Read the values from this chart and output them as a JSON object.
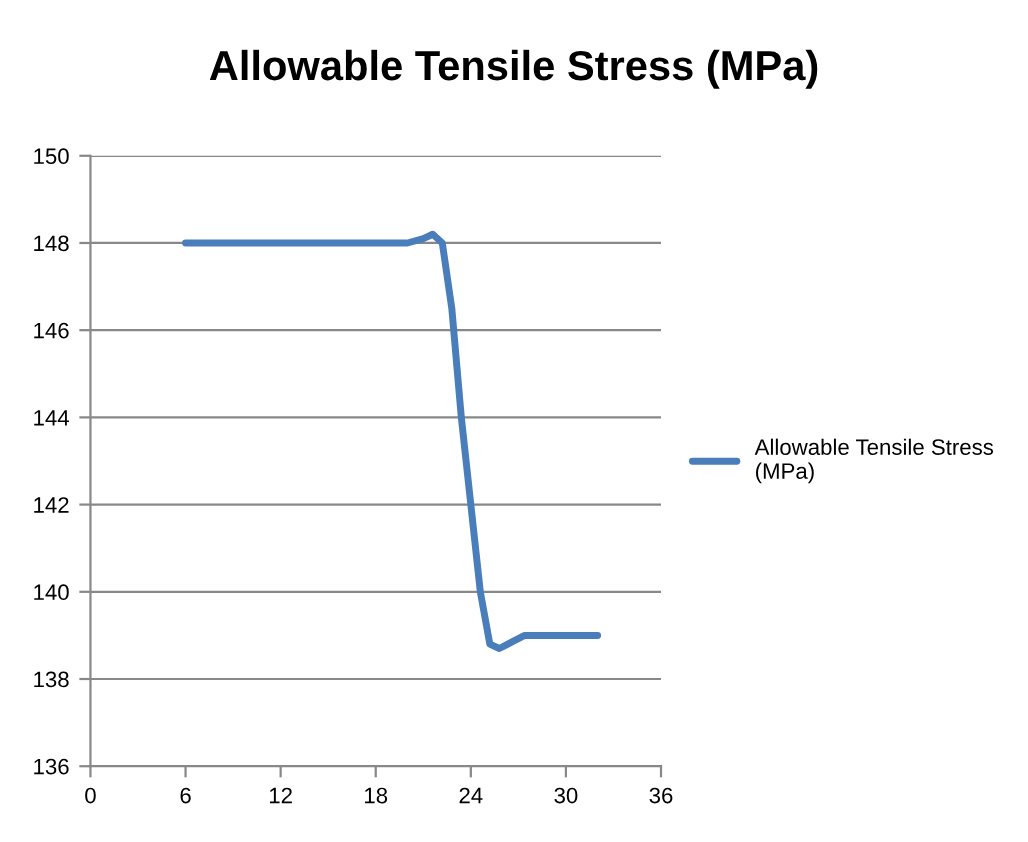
{
  "chart_data": {
    "type": "line",
    "title": "Allowable Tensile Stress (MPa)",
    "x": [
      6,
      20,
      21,
      21.6,
      22.2,
      22.8,
      23.4,
      24,
      24.6,
      25.2,
      25.8,
      26.6,
      27.4,
      32
    ],
    "series": [
      {
        "name": "Allowable Tensile Stress (MPa)",
        "color": "#4a7ebb",
        "values": [
          148,
          148,
          148.1,
          148.2,
          148,
          146.5,
          144,
          142,
          140,
          138.8,
          138.7,
          138.85,
          139,
          139
        ]
      }
    ],
    "xlim": [
      0,
      36
    ],
    "xticks": [
      0,
      6,
      12,
      18,
      24,
      30,
      36
    ],
    "ylim": [
      136,
      150
    ],
    "yticks": [
      136,
      138,
      140,
      142,
      144,
      146,
      148,
      150
    ],
    "grid": "y",
    "legend": "right",
    "marker": "none",
    "line_style": "solid"
  }
}
